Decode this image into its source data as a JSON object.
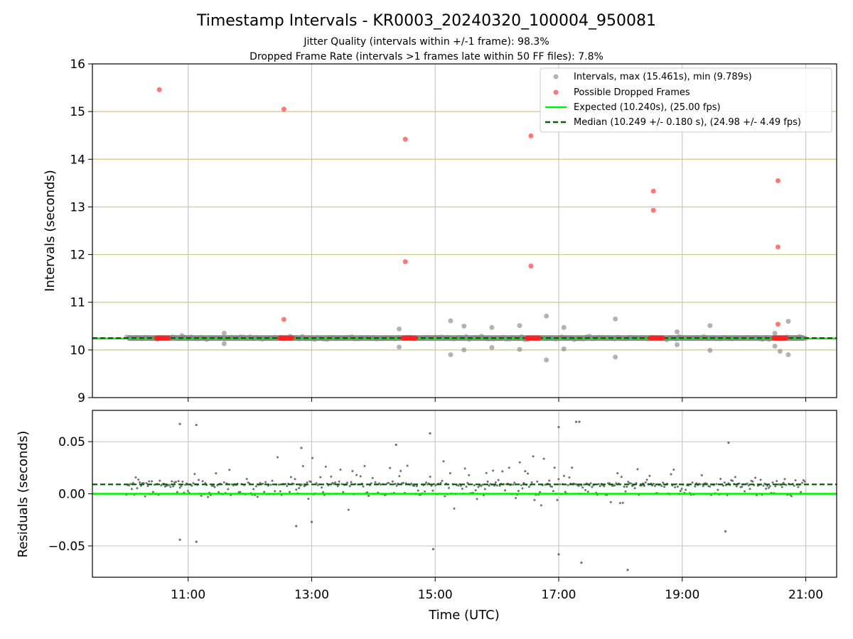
{
  "figure": {
    "title": "Timestamp Intervals - KR0003_20240320_100004_950081",
    "subtitle_1": "Jitter Quality (intervals within +/-1 frame): 98.3%",
    "subtitle_2": "Dropped Frame Rate (intervals >1 frames late within 50 FF files): 7.8%",
    "xlabel": "Time (UTC)"
  },
  "chart_data": [
    {
      "type": "scatter",
      "panel": "top",
      "ylabel": "Intervals (seconds)",
      "xlim": [
        "09:27",
        "21:30"
      ],
      "ylim": [
        9,
        16
      ],
      "yticks": [
        "9",
        "10",
        "11",
        "12",
        "13",
        "14",
        "15",
        "16"
      ],
      "xticks": [
        "11:00",
        "13:00",
        "15:00",
        "17:00",
        "19:00",
        "21:00"
      ],
      "grid": {
        "vertical": true,
        "horizontal_lines_at": [
          10,
          11,
          12,
          13,
          14,
          15
        ],
        "horizontal_color": "#d4c48c"
      },
      "legend_position": "top-right",
      "legend": [
        "Intervals, max (15.461s), min (9.789s)",
        "Possible Dropped Frames",
        "Expected (10.240s), (25.00 fps)",
        "Median (10.249 +/- 0.180 s), (24.98 +/- 4.49 fps)"
      ],
      "colors": {
        "intervals": "#808080",
        "dropped": "#ff2020",
        "expected": "#00ee00",
        "median": "#006400"
      },
      "lines": {
        "expected": 10.24,
        "median": 10.249
      },
      "intervals_band": {
        "time_range": [
          "10:00",
          "21:00"
        ],
        "center": 10.25
      },
      "interval_outliers": [
        {
          "t": "10:54",
          "y": 10.3
        },
        {
          "t": "11:35",
          "y": 10.35
        },
        {
          "t": "11:35",
          "y": 10.13
        },
        {
          "t": "14:25",
          "y": 10.44
        },
        {
          "t": "14:25",
          "y": 10.06
        },
        {
          "t": "15:15",
          "y": 10.61
        },
        {
          "t": "15:15",
          "y": 9.9
        },
        {
          "t": "15:28",
          "y": 10.5
        },
        {
          "t": "15:28",
          "y": 10.0
        },
        {
          "t": "15:55",
          "y": 10.47
        },
        {
          "t": "15:55",
          "y": 10.05
        },
        {
          "t": "16:22",
          "y": 10.51
        },
        {
          "t": "16:22",
          "y": 10.01
        },
        {
          "t": "16:48",
          "y": 10.71
        },
        {
          "t": "16:48",
          "y": 9.79
        },
        {
          "t": "17:05",
          "y": 10.47
        },
        {
          "t": "17:05",
          "y": 10.02
        },
        {
          "t": "17:55",
          "y": 10.65
        },
        {
          "t": "17:55",
          "y": 9.85
        },
        {
          "t": "18:55",
          "y": 10.38
        },
        {
          "t": "18:55",
          "y": 10.11
        },
        {
          "t": "19:27",
          "y": 10.51
        },
        {
          "t": "19:27",
          "y": 9.99
        },
        {
          "t": "20:30",
          "y": 10.35
        },
        {
          "t": "20:30",
          "y": 10.08
        },
        {
          "t": "20:35",
          "y": 9.97
        },
        {
          "t": "20:43",
          "y": 10.6
        },
        {
          "t": "20:43",
          "y": 9.9
        }
      ],
      "dropped_frames": [
        {
          "t": "10:32",
          "y": 15.46
        },
        {
          "t": "12:33",
          "y": 15.05
        },
        {
          "t": "12:33",
          "y": 10.64
        },
        {
          "t": "14:31",
          "y": 14.42
        },
        {
          "t": "14:31",
          "y": 11.85
        },
        {
          "t": "16:33",
          "y": 14.49
        },
        {
          "t": "16:33",
          "y": 11.76
        },
        {
          "t": "18:32",
          "y": 13.33
        },
        {
          "t": "18:32",
          "y": 12.93
        },
        {
          "t": "20:33",
          "y": 13.55
        },
        {
          "t": "20:33",
          "y": 12.16
        },
        {
          "t": "20:33",
          "y": 10.54
        }
      ],
      "dropped_clusters_near_expected": [
        "10:35",
        "12:35",
        "14:35",
        "16:35",
        "18:35",
        "20:35"
      ]
    },
    {
      "type": "scatter",
      "panel": "bottom",
      "ylabel": "Residuals (seconds)",
      "ylim": [
        -0.08,
        0.08
      ],
      "yticks": [
        "−0.05",
        "0.00",
        "0.05"
      ],
      "ytick_values": [
        -0.05,
        0.0,
        0.05
      ],
      "grid": true,
      "colors": {
        "points": "#707070",
        "zero_line": "#00ee00",
        "median_line": "#006400"
      },
      "lines": {
        "zero": 0.0,
        "median_offset": 0.009
      },
      "outliers": [
        {
          "t": "10:52",
          "y": 0.067
        },
        {
          "t": "11:08",
          "y": 0.066
        },
        {
          "t": "10:52",
          "y": -0.044
        },
        {
          "t": "11:08",
          "y": -0.046
        },
        {
          "t": "14:55",
          "y": 0.058
        },
        {
          "t": "14:58",
          "y": -0.053
        },
        {
          "t": "17:00",
          "y": 0.064
        },
        {
          "t": "17:00",
          "y": -0.058
        },
        {
          "t": "17:17",
          "y": 0.069
        },
        {
          "t": "17:20",
          "y": 0.069
        },
        {
          "t": "17:22",
          "y": -0.066
        },
        {
          "t": "18:07",
          "y": -0.073
        },
        {
          "t": "19:45",
          "y": 0.049
        },
        {
          "t": "14:22",
          "y": 0.047
        },
        {
          "t": "12:50",
          "y": 0.044
        },
        {
          "t": "12:45",
          "y": -0.031
        },
        {
          "t": "13:00",
          "y": -0.027
        },
        {
          "t": "19:42",
          "y": -0.036
        }
      ]
    }
  ]
}
